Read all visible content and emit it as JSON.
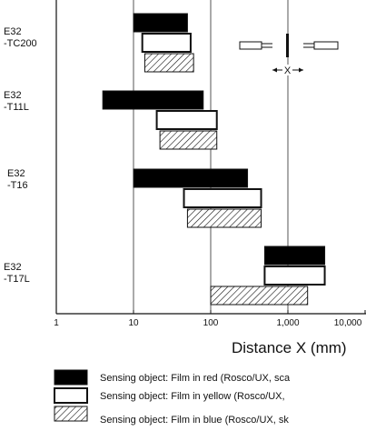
{
  "chart_data": {
    "type": "bar",
    "subtype": "floating-range",
    "x_scale": "log",
    "xlim": [
      1,
      10000
    ],
    "xlabel": "Distance X (mm)",
    "x_ticks": [
      {
        "value": 1,
        "label": "1"
      },
      {
        "value": 10,
        "label": "10"
      },
      {
        "value": 100,
        "label": "100"
      },
      {
        "value": 1000,
        "label": "1,000"
      },
      {
        "value": 10000,
        "label": "10,000"
      }
    ],
    "gridlines_x": [
      10,
      100,
      1000
    ],
    "categories": [
      {
        "name": "E32\n-TC200",
        "line1": "E32",
        "line2": "-TC200"
      },
      {
        "name": "E32\n-T11L",
        "line1": "E32",
        "line2": "-T11L"
      },
      {
        "name": "E32\n-T16",
        "line1": "E32",
        "line2": "-T16"
      },
      {
        "name": "E32\n-T17L",
        "line1": "E32",
        "line2": "-T17L"
      }
    ],
    "series": [
      {
        "name": "Sensing object: Film in red (Rosco/UX, sca",
        "fill": "black",
        "ranges": [
          [
            10,
            50
          ],
          [
            4,
            80
          ],
          [
            10,
            300
          ],
          [
            500,
            3000
          ]
        ]
      },
      {
        "name": "Sensing object: Film in yellow (Rosco/UX,",
        "fill": "white",
        "ranges": [
          [
            13,
            55
          ],
          [
            20,
            120
          ],
          [
            45,
            450
          ],
          [
            500,
            3000
          ]
        ]
      },
      {
        "name": "Sensing object: Film in blue (Rosco/UX, sk",
        "fill": "hatched",
        "ranges": [
          [
            14,
            60
          ],
          [
            22,
            120
          ],
          [
            50,
            450
          ],
          [
            100,
            1800
          ]
        ]
      }
    ],
    "inset_diagram": {
      "label": "X"
    },
    "colors": {
      "black": "#000000",
      "white": "#ffffff",
      "outline": "#111111",
      "grid": "#555555"
    }
  }
}
